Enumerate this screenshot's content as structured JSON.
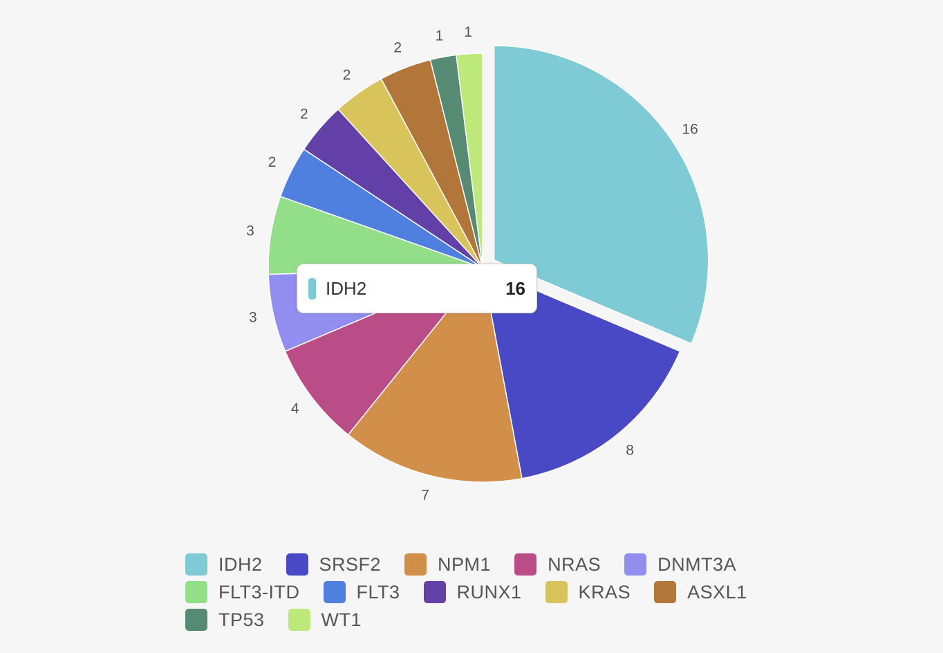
{
  "chart_data": {
    "type": "pie",
    "categories": [
      "IDH2",
      "SRSF2",
      "NPM1",
      "NRAS",
      "DNMT3A",
      "FLT3-ITD",
      "FLT3",
      "RUNX1",
      "KRAS",
      "ASXL1",
      "TP53",
      "WT1"
    ],
    "values": [
      16,
      8,
      7,
      4,
      3,
      3,
      2,
      2,
      2,
      2,
      1,
      1
    ],
    "colors": [
      "#7ecbd5",
      "#4a49c5",
      "#d28f49",
      "#ba4d88",
      "#918eef",
      "#92de89",
      "#4f80df",
      "#6240a8",
      "#d8c45a",
      "#b2763a",
      "#578a72",
      "#bde87a"
    ],
    "highlighted": "IDH2",
    "legend_position": "bottom"
  },
  "tooltip": {
    "name": "IDH2",
    "value": "16",
    "color": "#7ecbd5"
  }
}
